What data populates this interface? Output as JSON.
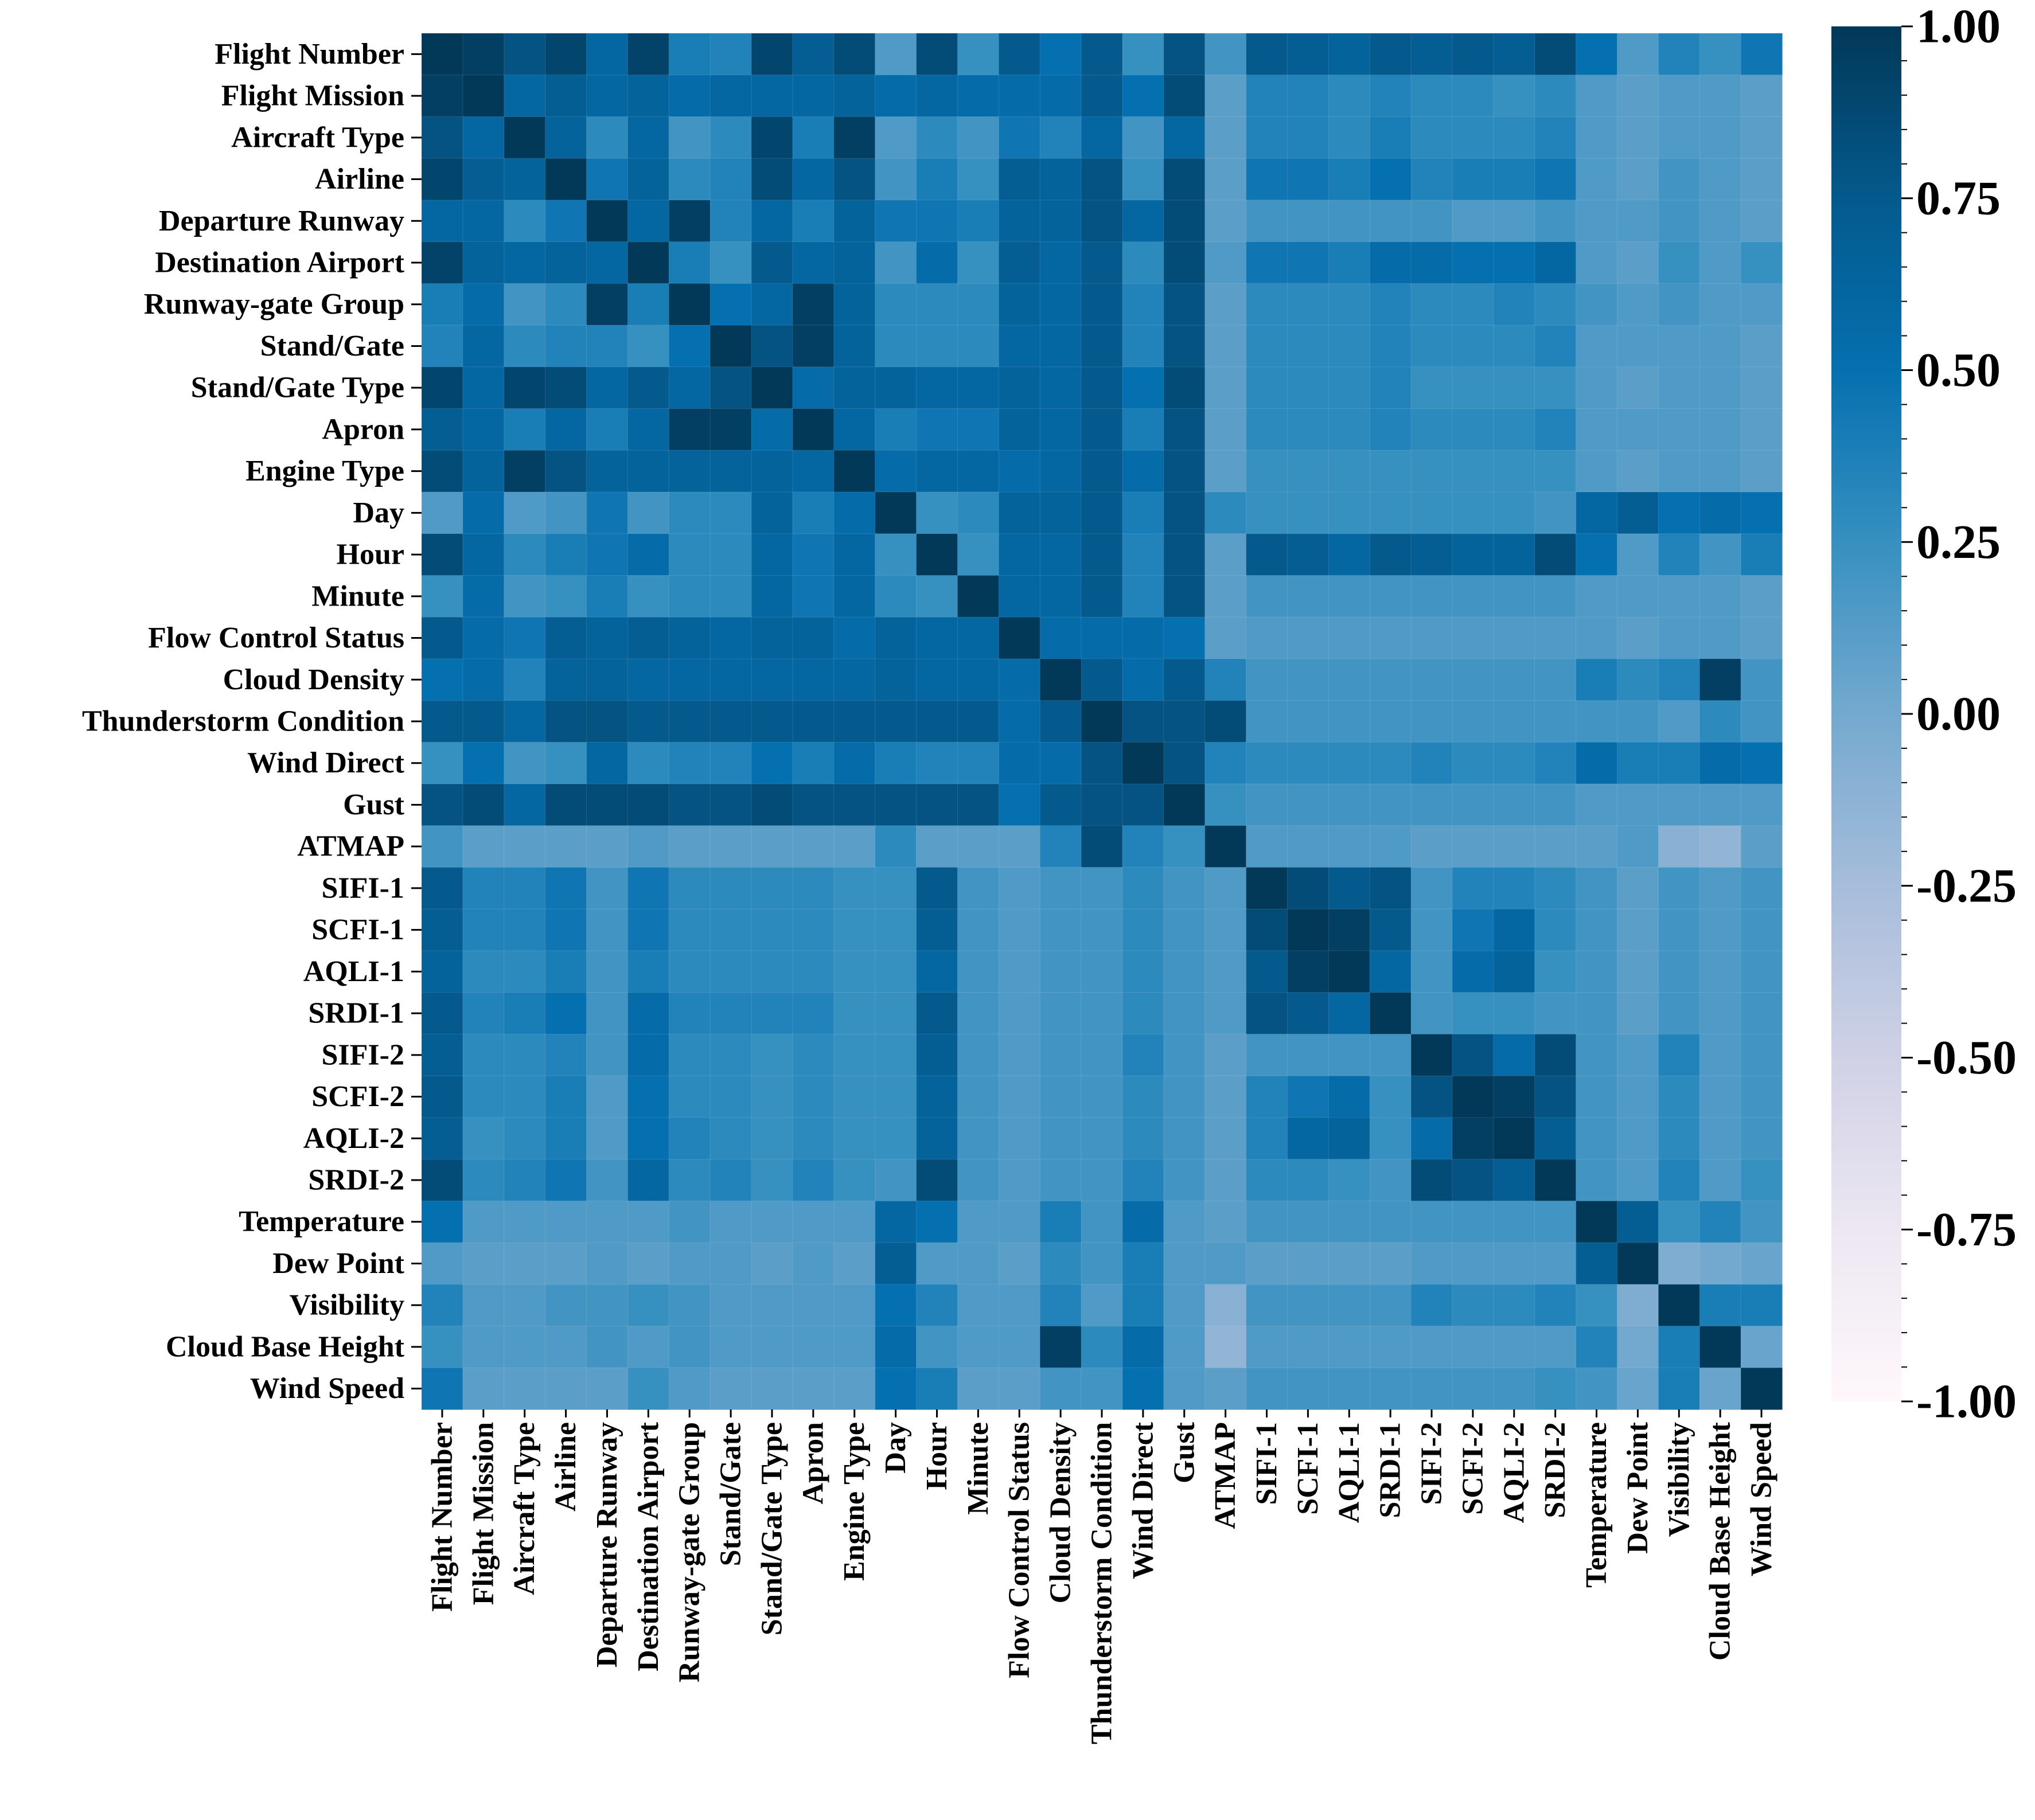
{
  "chart_data": {
    "type": "heatmap",
    "title": "",
    "xlabel": "",
    "ylabel": "",
    "labels": [
      "Flight Number",
      "Flight Mission",
      "Aircraft Type",
      "Airline",
      "Departure Runway",
      "Destination Airport",
      "Runway-gate Group",
      "Stand/Gate",
      "Stand/Gate Type",
      "Apron",
      "Engine Type",
      "Day",
      "Hour",
      "Minute",
      "Flow Control Status",
      "Cloud Density",
      "Thunderstorm Condition",
      "Wind Direct",
      "Gust",
      "ATMAP",
      "SIFI-1",
      "SCFI-1",
      "AQLI-1",
      "SRDI-1",
      "SIFI-2",
      "SCFI-2",
      "AQLI-2",
      "SRDI-2",
      "Temperature",
      "Dew Point",
      "Visibility",
      "Cloud Base Height",
      "Wind Speed"
    ],
    "colorbar": {
      "range": [
        -1,
        1
      ],
      "ticks": [
        1.0,
        0.75,
        0.5,
        0.25,
        0.0,
        -0.25,
        -0.5,
        -0.75,
        -1.0
      ],
      "tick_labels": [
        "1.00",
        "0.75",
        "0.50",
        "0.25",
        "0.00",
        "-0.25",
        "-0.50",
        "-0.75",
        "-1.00"
      ],
      "colormap": "PuBu",
      "stops": [
        "#fff7fb",
        "#ece7f2",
        "#d0d1e6",
        "#a6bddb",
        "#74a9cf",
        "#3690c0",
        "#0570b0",
        "#045a8d",
        "#023858"
      ]
    },
    "matrix": [
      [
        1.0,
        0.95,
        0.8,
        0.9,
        0.6,
        0.92,
        0.4,
        0.35,
        0.9,
        0.7,
        0.85,
        0.15,
        0.85,
        0.25,
        0.75,
        0.5,
        0.75,
        0.25,
        0.8,
        0.2,
        0.75,
        0.7,
        0.65,
        0.75,
        0.7,
        0.75,
        0.7,
        0.85,
        0.5,
        0.15,
        0.35,
        0.25,
        0.45
      ],
      [
        0.95,
        1.0,
        0.6,
        0.7,
        0.6,
        0.65,
        0.55,
        0.6,
        0.6,
        0.6,
        0.65,
        0.55,
        0.6,
        0.55,
        0.55,
        0.55,
        0.75,
        0.5,
        0.85,
        0.1,
        0.35,
        0.35,
        0.3,
        0.35,
        0.3,
        0.3,
        0.25,
        0.3,
        0.15,
        0.1,
        0.15,
        0.15,
        0.1
      ],
      [
        0.8,
        0.6,
        1.0,
        0.65,
        0.3,
        0.6,
        0.2,
        0.3,
        0.9,
        0.4,
        0.95,
        0.15,
        0.3,
        0.2,
        0.45,
        0.35,
        0.6,
        0.2,
        0.6,
        0.1,
        0.35,
        0.35,
        0.3,
        0.4,
        0.3,
        0.3,
        0.3,
        0.35,
        0.15,
        0.1,
        0.15,
        0.15,
        0.1
      ],
      [
        0.9,
        0.7,
        0.65,
        1.0,
        0.45,
        0.65,
        0.3,
        0.35,
        0.85,
        0.6,
        0.8,
        0.2,
        0.4,
        0.25,
        0.7,
        0.65,
        0.8,
        0.25,
        0.85,
        0.1,
        0.45,
        0.45,
        0.4,
        0.5,
        0.35,
        0.4,
        0.4,
        0.45,
        0.15,
        0.1,
        0.2,
        0.15,
        0.1
      ],
      [
        0.6,
        0.6,
        0.3,
        0.45,
        1.0,
        0.6,
        0.95,
        0.35,
        0.6,
        0.4,
        0.65,
        0.45,
        0.45,
        0.4,
        0.65,
        0.65,
        0.8,
        0.6,
        0.85,
        0.1,
        0.2,
        0.2,
        0.2,
        0.2,
        0.2,
        0.15,
        0.15,
        0.2,
        0.15,
        0.15,
        0.2,
        0.15,
        0.1
      ],
      [
        0.92,
        0.65,
        0.6,
        0.65,
        0.6,
        1.0,
        0.4,
        0.25,
        0.75,
        0.6,
        0.65,
        0.2,
        0.55,
        0.25,
        0.7,
        0.6,
        0.75,
        0.3,
        0.85,
        0.15,
        0.45,
        0.45,
        0.4,
        0.55,
        0.55,
        0.5,
        0.5,
        0.6,
        0.15,
        0.1,
        0.25,
        0.15,
        0.25
      ],
      [
        0.4,
        0.55,
        0.2,
        0.3,
        0.95,
        0.4,
        1.0,
        0.5,
        0.6,
        0.95,
        0.65,
        0.3,
        0.3,
        0.3,
        0.65,
        0.6,
        0.75,
        0.35,
        0.8,
        0.1,
        0.3,
        0.3,
        0.3,
        0.35,
        0.3,
        0.3,
        0.35,
        0.3,
        0.2,
        0.15,
        0.2,
        0.15,
        0.15
      ],
      [
        0.35,
        0.6,
        0.3,
        0.35,
        0.35,
        0.25,
        0.5,
        1.0,
        0.8,
        0.95,
        0.65,
        0.3,
        0.3,
        0.3,
        0.6,
        0.6,
        0.75,
        0.35,
        0.8,
        0.1,
        0.3,
        0.3,
        0.3,
        0.35,
        0.3,
        0.3,
        0.3,
        0.35,
        0.15,
        0.15,
        0.15,
        0.15,
        0.1
      ],
      [
        0.9,
        0.6,
        0.9,
        0.85,
        0.6,
        0.75,
        0.6,
        0.8,
        1.0,
        0.55,
        0.65,
        0.65,
        0.6,
        0.6,
        0.65,
        0.6,
        0.75,
        0.5,
        0.85,
        0.1,
        0.3,
        0.3,
        0.3,
        0.35,
        0.25,
        0.25,
        0.25,
        0.25,
        0.15,
        0.1,
        0.15,
        0.15,
        0.1
      ],
      [
        0.7,
        0.6,
        0.4,
        0.6,
        0.4,
        0.6,
        0.95,
        0.95,
        0.55,
        1.0,
        0.6,
        0.4,
        0.45,
        0.45,
        0.65,
        0.6,
        0.75,
        0.4,
        0.8,
        0.1,
        0.3,
        0.3,
        0.3,
        0.35,
        0.3,
        0.3,
        0.3,
        0.35,
        0.15,
        0.15,
        0.15,
        0.15,
        0.1
      ],
      [
        0.85,
        0.65,
        0.95,
        0.8,
        0.65,
        0.65,
        0.65,
        0.65,
        0.65,
        0.6,
        1.0,
        0.55,
        0.6,
        0.6,
        0.55,
        0.6,
        0.75,
        0.55,
        0.8,
        0.1,
        0.25,
        0.25,
        0.25,
        0.25,
        0.25,
        0.25,
        0.25,
        0.25,
        0.15,
        0.1,
        0.15,
        0.15,
        0.1
      ],
      [
        0.15,
        0.55,
        0.15,
        0.2,
        0.45,
        0.2,
        0.3,
        0.3,
        0.65,
        0.4,
        0.55,
        1.0,
        0.25,
        0.3,
        0.65,
        0.65,
        0.75,
        0.4,
        0.8,
        0.3,
        0.25,
        0.25,
        0.25,
        0.25,
        0.25,
        0.25,
        0.25,
        0.2,
        0.6,
        0.7,
        0.5,
        0.55,
        0.5
      ],
      [
        0.85,
        0.6,
        0.3,
        0.4,
        0.45,
        0.55,
        0.3,
        0.3,
        0.6,
        0.45,
        0.6,
        0.25,
        1.0,
        0.25,
        0.6,
        0.6,
        0.75,
        0.35,
        0.8,
        0.1,
        0.75,
        0.7,
        0.6,
        0.75,
        0.7,
        0.65,
        0.65,
        0.85,
        0.5,
        0.15,
        0.35,
        0.2,
        0.4
      ],
      [
        0.25,
        0.55,
        0.2,
        0.25,
        0.4,
        0.25,
        0.3,
        0.3,
        0.6,
        0.45,
        0.6,
        0.3,
        0.25,
        1.0,
        0.6,
        0.6,
        0.75,
        0.35,
        0.8,
        0.1,
        0.2,
        0.2,
        0.2,
        0.2,
        0.2,
        0.2,
        0.2,
        0.2,
        0.15,
        0.15,
        0.15,
        0.15,
        0.1
      ],
      [
        0.75,
        0.55,
        0.45,
        0.7,
        0.65,
        0.7,
        0.65,
        0.6,
        0.65,
        0.65,
        0.55,
        0.65,
        0.6,
        0.6,
        1.0,
        0.55,
        0.55,
        0.55,
        0.5,
        0.1,
        0.15,
        0.15,
        0.15,
        0.15,
        0.15,
        0.15,
        0.15,
        0.15,
        0.15,
        0.1,
        0.15,
        0.15,
        0.1
      ],
      [
        0.5,
        0.55,
        0.35,
        0.65,
        0.65,
        0.6,
        0.6,
        0.6,
        0.6,
        0.6,
        0.6,
        0.65,
        0.6,
        0.6,
        0.55,
        1.0,
        0.75,
        0.55,
        0.75,
        0.35,
        0.2,
        0.2,
        0.2,
        0.2,
        0.2,
        0.2,
        0.2,
        0.2,
        0.4,
        0.3,
        0.35,
        0.95,
        0.2
      ],
      [
        0.75,
        0.75,
        0.6,
        0.8,
        0.8,
        0.75,
        0.75,
        0.75,
        0.75,
        0.75,
        0.75,
        0.75,
        0.75,
        0.75,
        0.55,
        0.75,
        1.0,
        0.8,
        0.8,
        0.85,
        0.2,
        0.2,
        0.2,
        0.2,
        0.2,
        0.2,
        0.2,
        0.2,
        0.2,
        0.2,
        0.15,
        0.3,
        0.2
      ],
      [
        0.25,
        0.5,
        0.2,
        0.25,
        0.6,
        0.3,
        0.35,
        0.35,
        0.5,
        0.4,
        0.55,
        0.4,
        0.35,
        0.35,
        0.55,
        0.55,
        0.8,
        1.0,
        0.8,
        0.35,
        0.3,
        0.3,
        0.3,
        0.3,
        0.35,
        0.3,
        0.3,
        0.35,
        0.55,
        0.4,
        0.4,
        0.55,
        0.5
      ],
      [
        0.8,
        0.85,
        0.6,
        0.85,
        0.85,
        0.85,
        0.8,
        0.8,
        0.85,
        0.8,
        0.8,
        0.8,
        0.8,
        0.8,
        0.5,
        0.75,
        0.8,
        0.8,
        1.0,
        0.25,
        0.2,
        0.2,
        0.2,
        0.2,
        0.2,
        0.2,
        0.2,
        0.2,
        0.15,
        0.15,
        0.15,
        0.15,
        0.15
      ],
      [
        0.2,
        0.1,
        0.1,
        0.1,
        0.1,
        0.15,
        0.1,
        0.1,
        0.1,
        0.1,
        0.1,
        0.3,
        0.1,
        0.1,
        0.1,
        0.35,
        0.85,
        0.35,
        0.25,
        1.0,
        0.15,
        0.15,
        0.15,
        0.15,
        0.1,
        0.1,
        0.1,
        0.1,
        0.1,
        0.15,
        -0.1,
        -0.15,
        0.1
      ],
      [
        0.75,
        0.35,
        0.35,
        0.45,
        0.2,
        0.45,
        0.3,
        0.3,
        0.3,
        0.3,
        0.25,
        0.25,
        0.75,
        0.2,
        0.15,
        0.2,
        0.2,
        0.3,
        0.2,
        0.15,
        1.0,
        0.85,
        0.75,
        0.8,
        0.2,
        0.35,
        0.35,
        0.3,
        0.2,
        0.1,
        0.2,
        0.15,
        0.2
      ],
      [
        0.7,
        0.35,
        0.35,
        0.45,
        0.2,
        0.45,
        0.3,
        0.3,
        0.3,
        0.3,
        0.25,
        0.25,
        0.7,
        0.2,
        0.15,
        0.2,
        0.2,
        0.3,
        0.2,
        0.15,
        0.85,
        1.0,
        0.95,
        0.75,
        0.2,
        0.45,
        0.6,
        0.3,
        0.2,
        0.1,
        0.2,
        0.15,
        0.2
      ],
      [
        0.65,
        0.3,
        0.3,
        0.4,
        0.2,
        0.4,
        0.3,
        0.3,
        0.3,
        0.3,
        0.25,
        0.25,
        0.6,
        0.2,
        0.15,
        0.2,
        0.2,
        0.3,
        0.2,
        0.15,
        0.75,
        0.95,
        1.0,
        0.6,
        0.2,
        0.55,
        0.65,
        0.25,
        0.2,
        0.1,
        0.2,
        0.15,
        0.2
      ],
      [
        0.75,
        0.35,
        0.4,
        0.5,
        0.2,
        0.55,
        0.35,
        0.35,
        0.35,
        0.35,
        0.25,
        0.25,
        0.75,
        0.2,
        0.15,
        0.2,
        0.2,
        0.3,
        0.2,
        0.15,
        0.8,
        0.75,
        0.6,
        1.0,
        0.2,
        0.25,
        0.25,
        0.2,
        0.2,
        0.1,
        0.2,
        0.15,
        0.2
      ],
      [
        0.7,
        0.3,
        0.3,
        0.35,
        0.2,
        0.55,
        0.3,
        0.3,
        0.25,
        0.3,
        0.25,
        0.25,
        0.7,
        0.2,
        0.15,
        0.2,
        0.2,
        0.35,
        0.2,
        0.1,
        0.2,
        0.2,
        0.2,
        0.2,
        1.0,
        0.8,
        0.55,
        0.85,
        0.2,
        0.15,
        0.35,
        0.15,
        0.2
      ],
      [
        0.75,
        0.3,
        0.3,
        0.4,
        0.15,
        0.5,
        0.3,
        0.3,
        0.25,
        0.3,
        0.25,
        0.25,
        0.65,
        0.2,
        0.15,
        0.2,
        0.2,
        0.3,
        0.2,
        0.1,
        0.35,
        0.45,
        0.55,
        0.25,
        0.8,
        1.0,
        0.95,
        0.8,
        0.2,
        0.15,
        0.3,
        0.15,
        0.2
      ],
      [
        0.7,
        0.25,
        0.3,
        0.4,
        0.15,
        0.5,
        0.35,
        0.3,
        0.25,
        0.3,
        0.25,
        0.25,
        0.65,
        0.2,
        0.15,
        0.2,
        0.2,
        0.3,
        0.2,
        0.1,
        0.35,
        0.6,
        0.65,
        0.25,
        0.55,
        0.95,
        1.0,
        0.7,
        0.2,
        0.15,
        0.3,
        0.15,
        0.2
      ],
      [
        0.85,
        0.3,
        0.35,
        0.45,
        0.2,
        0.6,
        0.3,
        0.35,
        0.25,
        0.35,
        0.25,
        0.2,
        0.85,
        0.2,
        0.15,
        0.2,
        0.2,
        0.35,
        0.2,
        0.1,
        0.3,
        0.3,
        0.25,
        0.2,
        0.85,
        0.8,
        0.7,
        1.0,
        0.2,
        0.15,
        0.35,
        0.15,
        0.25
      ],
      [
        0.5,
        0.15,
        0.15,
        0.15,
        0.15,
        0.15,
        0.2,
        0.15,
        0.15,
        0.15,
        0.15,
        0.6,
        0.5,
        0.15,
        0.15,
        0.4,
        0.2,
        0.55,
        0.15,
        0.1,
        0.2,
        0.2,
        0.2,
        0.2,
        0.2,
        0.2,
        0.2,
        0.2,
        1.0,
        0.7,
        0.25,
        0.35,
        0.2
      ],
      [
        0.15,
        0.1,
        0.1,
        0.1,
        0.15,
        0.1,
        0.15,
        0.15,
        0.1,
        0.15,
        0.1,
        0.7,
        0.15,
        0.15,
        0.1,
        0.3,
        0.2,
        0.4,
        0.15,
        0.15,
        0.1,
        0.1,
        0.1,
        0.1,
        0.15,
        0.15,
        0.15,
        0.15,
        0.7,
        1.0,
        -0.05,
        0.0,
        0.05
      ],
      [
        0.35,
        0.15,
        0.15,
        0.2,
        0.2,
        0.25,
        0.2,
        0.15,
        0.15,
        0.15,
        0.15,
        0.5,
        0.35,
        0.15,
        0.15,
        0.35,
        0.15,
        0.4,
        0.15,
        -0.1,
        0.2,
        0.2,
        0.2,
        0.2,
        0.35,
        0.3,
        0.3,
        0.35,
        0.25,
        -0.05,
        1.0,
        0.4,
        0.4
      ],
      [
        0.25,
        0.15,
        0.15,
        0.15,
        0.2,
        0.15,
        0.2,
        0.15,
        0.15,
        0.15,
        0.15,
        0.55,
        0.2,
        0.15,
        0.15,
        0.95,
        0.3,
        0.55,
        0.15,
        -0.15,
        0.15,
        0.15,
        0.15,
        0.15,
        0.15,
        0.15,
        0.15,
        0.15,
        0.35,
        0.0,
        0.4,
        1.0,
        0.05
      ],
      [
        0.45,
        0.1,
        0.1,
        0.1,
        0.1,
        0.25,
        0.15,
        0.1,
        0.1,
        0.1,
        0.1,
        0.5,
        0.4,
        0.1,
        0.1,
        0.2,
        0.2,
        0.5,
        0.15,
        0.1,
        0.2,
        0.2,
        0.2,
        0.2,
        0.2,
        0.2,
        0.2,
        0.25,
        0.2,
        0.05,
        0.4,
        0.05,
        1.0
      ]
    ]
  }
}
